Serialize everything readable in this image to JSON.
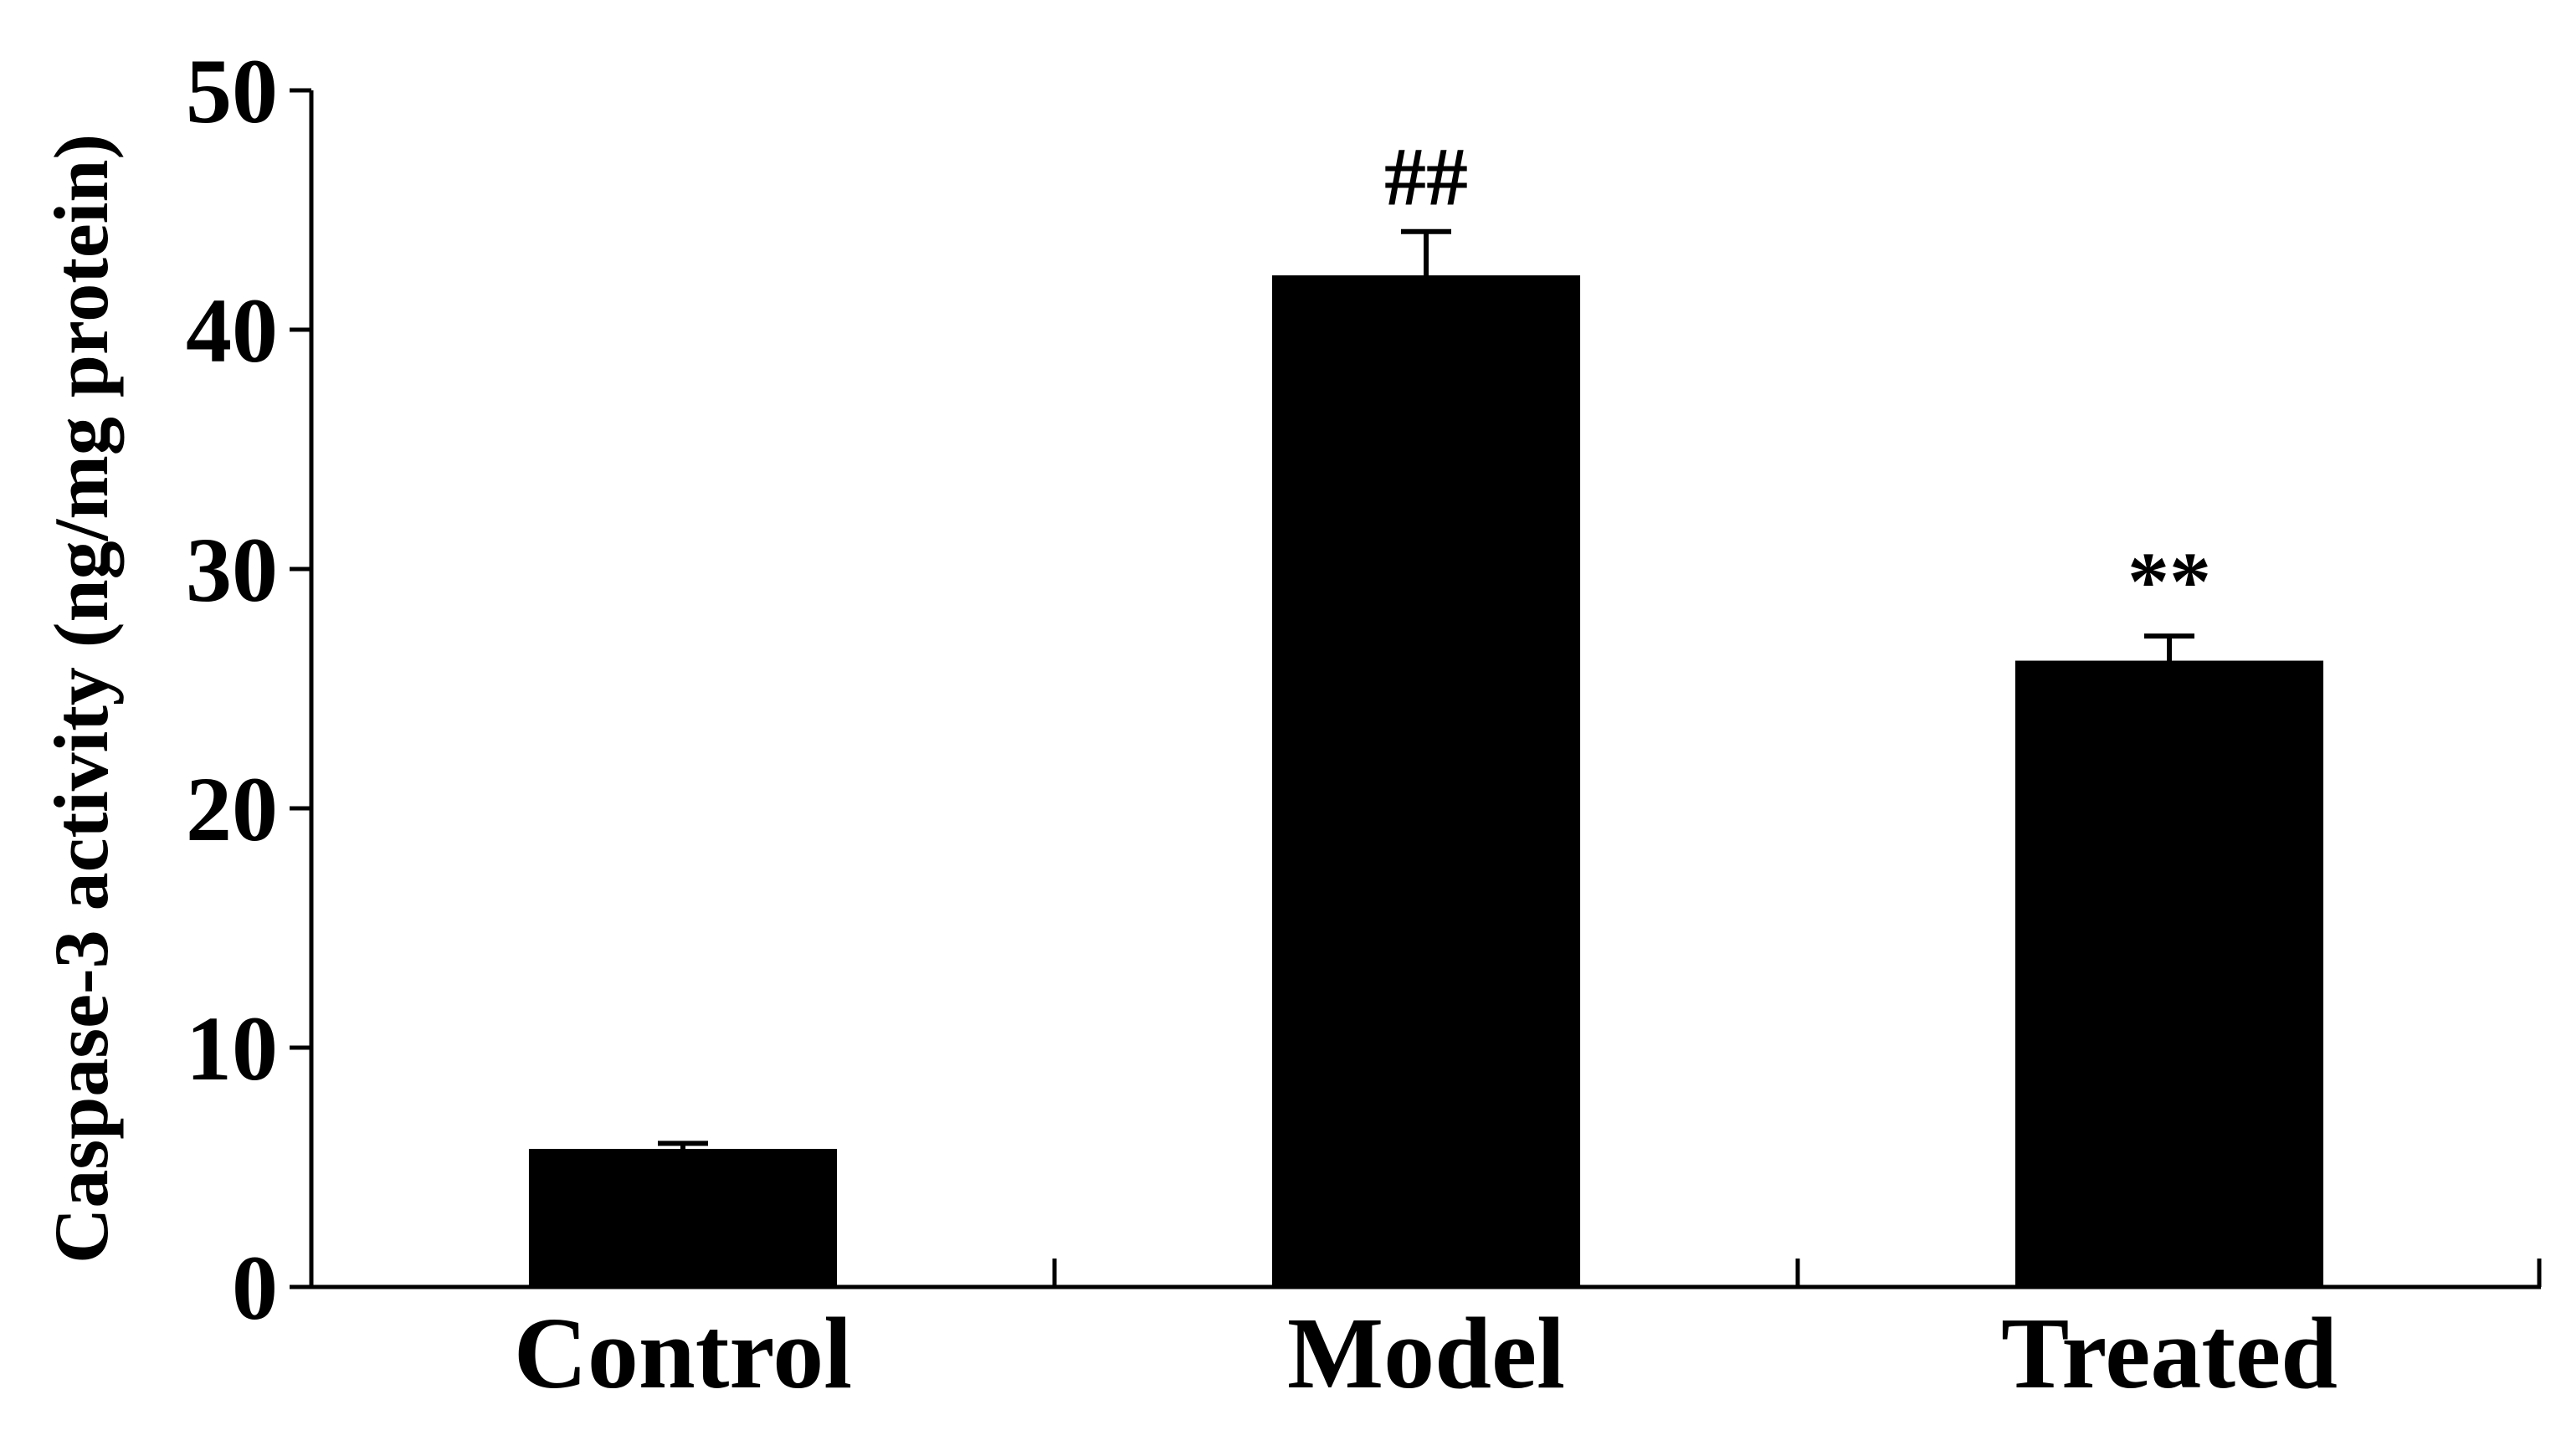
{
  "chart_data": {
    "type": "bar",
    "categories": [
      "Control",
      "Model",
      "Treated"
    ],
    "values": [
      5.7,
      42.2,
      26.1
    ],
    "errors": [
      0.3,
      1.9,
      1.1
    ],
    "annotations": [
      "",
      "##",
      "**"
    ],
    "xlabel": "",
    "ylabel": "Caspase-3 activity (ng/mg protein)",
    "ylim": [
      0,
      50
    ],
    "yticks": [
      "0",
      "10",
      "20",
      "30",
      "40",
      "50"
    ],
    "bar_color": "#000000",
    "grid": false
  }
}
